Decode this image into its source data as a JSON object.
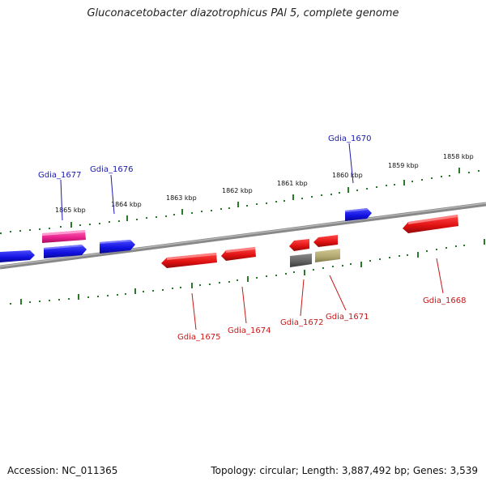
{
  "title": "Gluconacetobacter diazotrophicus PAl 5, complete genome",
  "footer": {
    "accession": "Accession: NC_011365",
    "summary": "Topology: circular; Length: 3,887,492 bp; Genes: 3,539"
  },
  "scale_labels": [
    "1865 kbp",
    "1864 kbp",
    "1863 kbp",
    "1862 kbp",
    "1861 kbp",
    "1860 kbp",
    "1859 kbp",
    "1858 kbp"
  ],
  "gene_labels": {
    "top": [
      "Gdia_1677",
      "Gdia_1676",
      "Gdia_1670"
    ],
    "bottom": [
      "Gdia_1675",
      "Gdia_1674",
      "Gdia_1672",
      "Gdia_1671",
      "Gdia_1668"
    ]
  },
  "colors": {
    "forward_gene": "#1010e0",
    "reverse_gene": "#e01010",
    "pink_gene": "#e8208c",
    "gray_gene": "#606060",
    "olive_gene": "#b0a870",
    "backbone": "#888888",
    "ticks": "#2a7a2a",
    "top_label": "#1a1aa8",
    "bottom_label": "#c81818"
  }
}
